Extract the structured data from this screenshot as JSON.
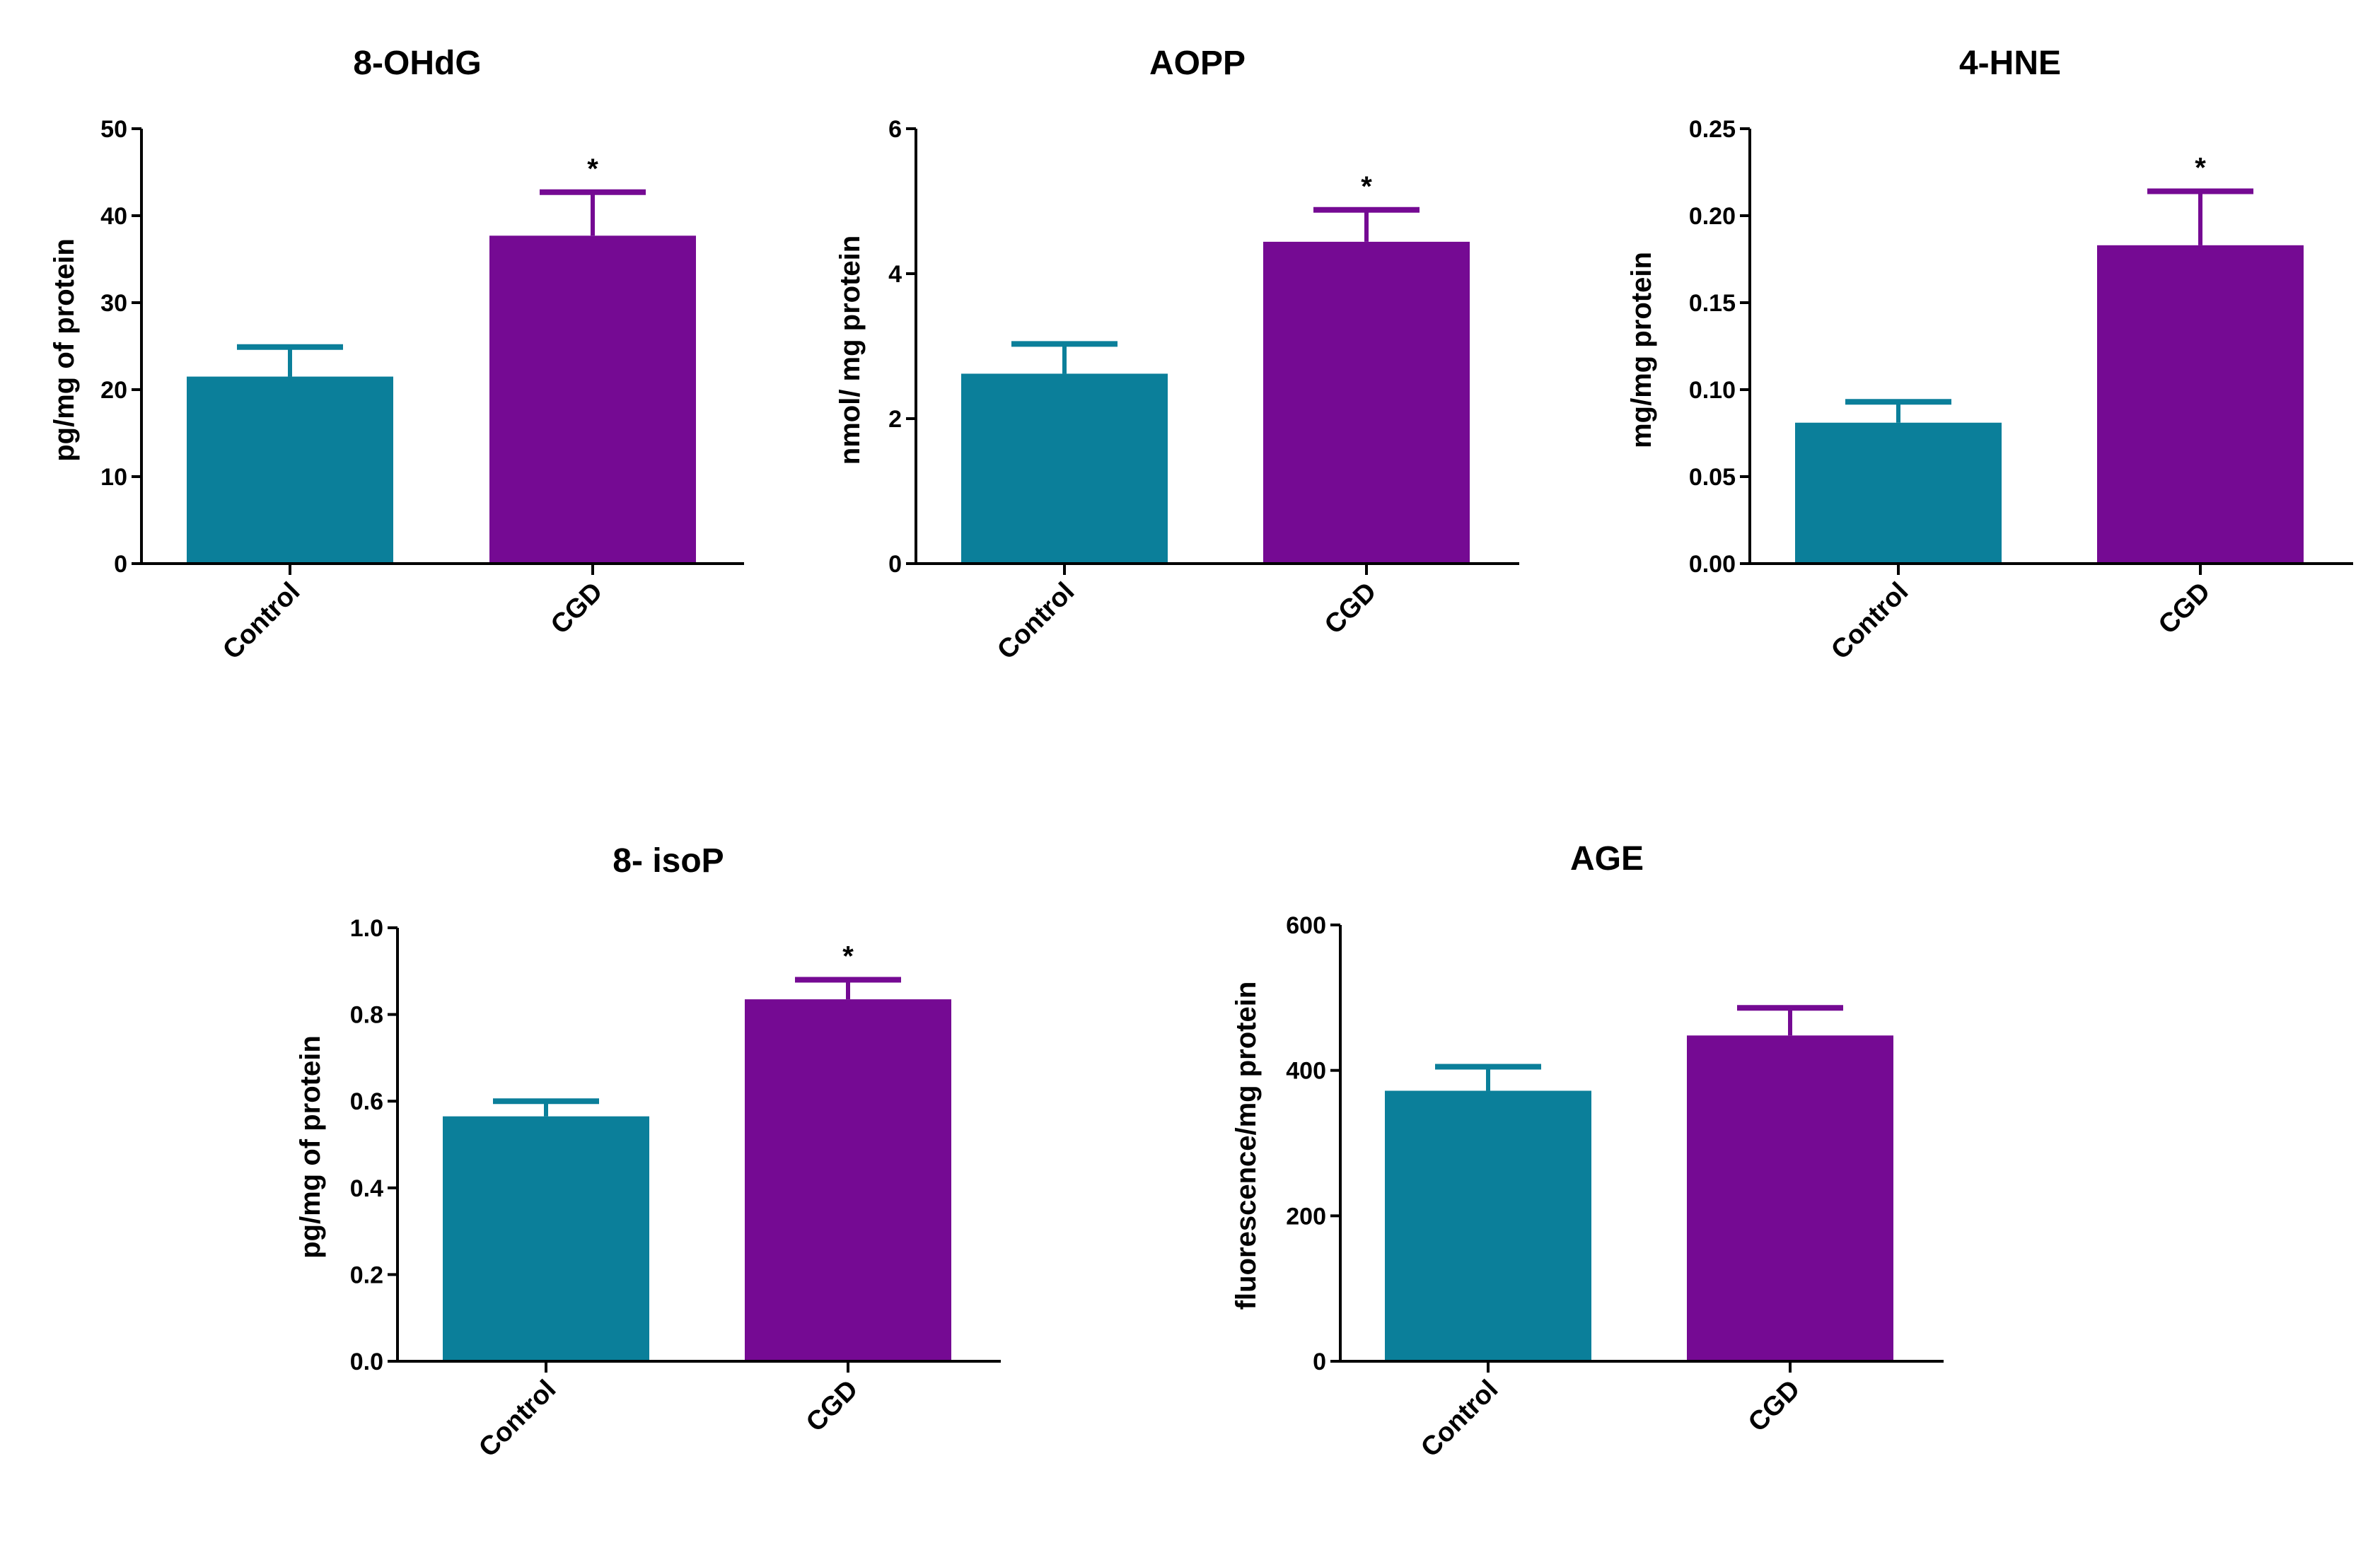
{
  "colors": {
    "control": "#0b7f9a",
    "cgd": "#750a93",
    "axis": "#000000"
  },
  "chart_data": [
    {
      "type": "bar",
      "title": "8-OHdG",
      "ylabel": "pg/mg of protein",
      "categories": [
        "Control",
        "CGD"
      ],
      "values": [
        21.5,
        37.7
      ],
      "errors": [
        3.4,
        5.0
      ],
      "significance": [
        "",
        "*"
      ],
      "ylim": [
        0,
        50
      ],
      "yticks": [
        0,
        10,
        20,
        30,
        40,
        50
      ],
      "ytick_labels": [
        "0",
        "10",
        "20",
        "30",
        "40",
        "50"
      ]
    },
    {
      "type": "bar",
      "title": "AOPP",
      "ylabel": "nmol/ mg protein",
      "categories": [
        "Control",
        "CGD"
      ],
      "values": [
        2.62,
        4.44
      ],
      "errors": [
        0.41,
        0.44
      ],
      "significance": [
        "",
        "*"
      ],
      "ylim": [
        0,
        6
      ],
      "yticks": [
        0,
        2,
        4,
        6
      ],
      "ytick_labels": [
        "0",
        "2",
        "4",
        "6"
      ]
    },
    {
      "type": "bar",
      "title": "4-HNE",
      "ylabel": "mg/mg protein",
      "categories": [
        "Control",
        "CGD"
      ],
      "values": [
        0.081,
        0.183
      ],
      "errors": [
        0.012,
        0.031
      ],
      "significance": [
        "",
        "*"
      ],
      "ylim": [
        0,
        0.25
      ],
      "yticks": [
        0,
        0.05,
        0.1,
        0.15,
        0.2,
        0.25
      ],
      "ytick_labels": [
        "0.00",
        "0.05",
        "0.10",
        "0.15",
        "0.20",
        "0.25"
      ]
    },
    {
      "type": "bar",
      "title": "8- isoP",
      "ylabel": "pg/mg of protein",
      "categories": [
        "Control",
        "CGD"
      ],
      "values": [
        0.565,
        0.835
      ],
      "errors": [
        0.035,
        0.045
      ],
      "significance": [
        "",
        "*"
      ],
      "ylim": [
        0,
        1.0
      ],
      "yticks": [
        0,
        0.2,
        0.4,
        0.6,
        0.8,
        1.0
      ],
      "ytick_labels": [
        "0.0",
        "0.2",
        "0.4",
        "0.6",
        "0.8",
        "1.0"
      ]
    },
    {
      "type": "bar",
      "title": "AGE",
      "ylabel": "fluorescence/mg protein",
      "categories": [
        "Control",
        "CGD"
      ],
      "values": [
        372,
        448
      ],
      "errors": [
        33,
        38
      ],
      "significance": [
        "",
        ""
      ],
      "ylim": [
        0,
        600
      ],
      "yticks": [
        0,
        200,
        400,
        600
      ],
      "ytick_labels": [
        "0",
        "200",
        "400",
        "600"
      ]
    }
  ]
}
